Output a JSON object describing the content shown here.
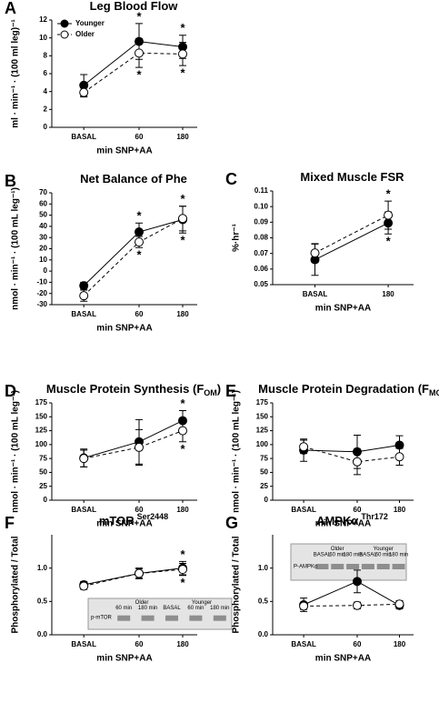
{
  "chart_data": [
    {
      "panel": "A",
      "type": "line",
      "title": "Leg Blood Flow",
      "y_label": "ml · min⁻¹ · (100 ml leg)⁻¹",
      "x_label": "min SNP+AA",
      "categories": [
        "BASAL",
        "60",
        "180"
      ],
      "ylim": [
        0,
        12
      ],
      "yticks": [
        0,
        2,
        4,
        6,
        8,
        10,
        12
      ],
      "legend": "upper left",
      "series": [
        {
          "name": "Younger",
          "color": "#000000",
          "values": [
            4.7,
            9.6,
            9.0
          ],
          "errors": [
            1.2,
            2.0,
            1.3
          ],
          "markers": [
            null,
            "*",
            "*"
          ]
        },
        {
          "name": "Older",
          "color": "#000000",
          "values": [
            3.9,
            8.3,
            8.2
          ],
          "errors": [
            0.5,
            1.6,
            1.3
          ],
          "markers": [
            null,
            "*",
            "*"
          ]
        }
      ]
    },
    {
      "panel": "B",
      "type": "line",
      "title": "Net Balance of Phe",
      "y_label": "nmol · min⁻¹ · (100 mL leg⁻¹)",
      "x_label": "min SNP+AA",
      "categories": [
        "BASAL",
        "60",
        "180"
      ],
      "ylim": [
        -30,
        70
      ],
      "yticks": [
        -30,
        -20,
        -10,
        0,
        10,
        20,
        30,
        40,
        50,
        60,
        70
      ],
      "series": [
        {
          "color": "#000000",
          "values": [
            -13,
            35,
            46
          ],
          "errors": [
            3,
            8,
            12
          ],
          "markers": [
            null,
            "*",
            "*"
          ]
        },
        {
          "color": "#000000",
          "values": [
            -22,
            26,
            47
          ],
          "errors": [
            5,
            5,
            11
          ],
          "markers": [
            null,
            "*",
            "*"
          ]
        }
      ]
    },
    {
      "panel": "C",
      "type": "line",
      "title": "Mixed Muscle FSR",
      "y_label": "%·hr⁻¹",
      "x_label": "min SNP+AA",
      "categories": [
        "BASAL",
        "180"
      ],
      "ylim": [
        0.05,
        0.11
      ],
      "yticks": [
        0.05,
        0.06,
        0.07,
        0.08,
        0.09,
        {
          "value": 0.1,
          "label": "0.10"
        },
        0.11
      ],
      "series": [
        {
          "color": "#000000",
          "values": [
            0.066,
            0.0895
          ],
          "errors": [
            0.01,
            0.007
          ],
          "markers": [
            null,
            "*"
          ]
        },
        {
          "color": "#000000",
          "values": [
            0.0703,
            0.0945
          ],
          "errors": [
            0.006,
            0.009
          ],
          "markers": [
            null,
            "*"
          ]
        }
      ]
    },
    {
      "panel": "D",
      "type": "line",
      "title": "Muscle Protein Synthesis (F",
      "title_sub": "OM",
      "title_tail": ")",
      "y_label": "nmol · min⁻¹ · (100 mL leg⁻¹)",
      "x_label": "min SNP+AA",
      "categories": [
        "BASAL",
        "60",
        "180"
      ],
      "ylim": [
        0,
        175
      ],
      "yticks": [
        0,
        25,
        50,
        75,
        100,
        125,
        150,
        175
      ],
      "series": [
        {
          "color": "#000000",
          "values": [
            76,
            105,
            143
          ],
          "errors": [
            16,
            40,
            18
          ],
          "markers": [
            null,
            null,
            "*"
          ]
        },
        {
          "color": "#000000",
          "values": [
            75,
            95,
            125
          ],
          "errors": [
            15,
            32,
            20
          ],
          "markers": [
            null,
            null,
            "*"
          ]
        }
      ]
    },
    {
      "panel": "E",
      "type": "line",
      "title": "Muscle Protein Degradation (F",
      "title_sub": "MO",
      "title_tail": ")",
      "y_label": "nmol · min⁻¹ · (100 mL leg⁻¹)",
      "x_label": "min SNP+AA",
      "categories": [
        "BASAL",
        "60",
        "180"
      ],
      "ylim": [
        0,
        175
      ],
      "yticks": [
        0,
        25,
        50,
        75,
        100,
        125,
        150,
        175
      ],
      "series": [
        {
          "color": "#000000",
          "values": [
            90,
            87,
            99
          ],
          "errors": [
            20,
            30,
            17
          ]
        },
        {
          "color": "#000000",
          "values": [
            96,
            69,
            78
          ],
          "errors": [
            12,
            23,
            15
          ]
        }
      ]
    },
    {
      "panel": "F",
      "type": "line",
      "title": "mTOR",
      "title_sup": "Ser2448",
      "y_label": "Phosphorylated / Total",
      "x_label": "min SNP+AA",
      "categories": [
        "BASAL",
        "60",
        "180"
      ],
      "ylim": [
        0,
        1.5
      ],
      "yticks": [
        {
          "value": 0,
          "label": "0.0"
        },
        0.5,
        {
          "value": 1,
          "label": "1.0"
        }
      ],
      "series": [
        {
          "color": "#000000",
          "values": [
            0.75,
            0.92,
            1.0
          ],
          "errors": [
            0.05,
            0.08,
            0.1
          ],
          "markers": [
            null,
            null,
            "*"
          ]
        },
        {
          "color": "#000000",
          "values": [
            0.73,
            0.92,
            0.98
          ],
          "errors": [
            0.05,
            0.07,
            0.09
          ],
          "markers": [
            null,
            null,
            "*"
          ]
        }
      ],
      "blot": {
        "row_label": "p-mTOR",
        "groups": [
          "Older",
          "Younger"
        ],
        "lanes": [
          "60 min",
          "180 min",
          "BASAL",
          "60 min",
          "180 min"
        ]
      }
    },
    {
      "panel": "G",
      "type": "line",
      "title": "AMPKα",
      "title_sup": "Thr172",
      "y_label": "Phosphorylated / Total",
      "x_label": "min SNP+AA",
      "categories": [
        "BASAL",
        "60",
        "180"
      ],
      "ylim": [
        0,
        1.5
      ],
      "yticks": [
        {
          "value": 0,
          "label": "0.0"
        },
        0.5,
        {
          "value": 1,
          "label": "1.0"
        }
      ],
      "series": [
        {
          "color": "#000000",
          "values": [
            0.45,
            0.8,
            0.44
          ],
          "errors": [
            0.1,
            0.17,
            0.05
          ]
        },
        {
          "color": "#000000",
          "values": [
            0.43,
            0.44,
            0.46
          ],
          "errors": [
            0.05,
            0.05,
            0.05
          ]
        }
      ],
      "blot": {
        "row_label": "P-AMPKα",
        "groups": [
          "Older",
          "Younger"
        ],
        "lanes": [
          "BASAL",
          "60 min",
          "180 min",
          "BASAL",
          "60 min",
          "180 min"
        ]
      }
    }
  ]
}
